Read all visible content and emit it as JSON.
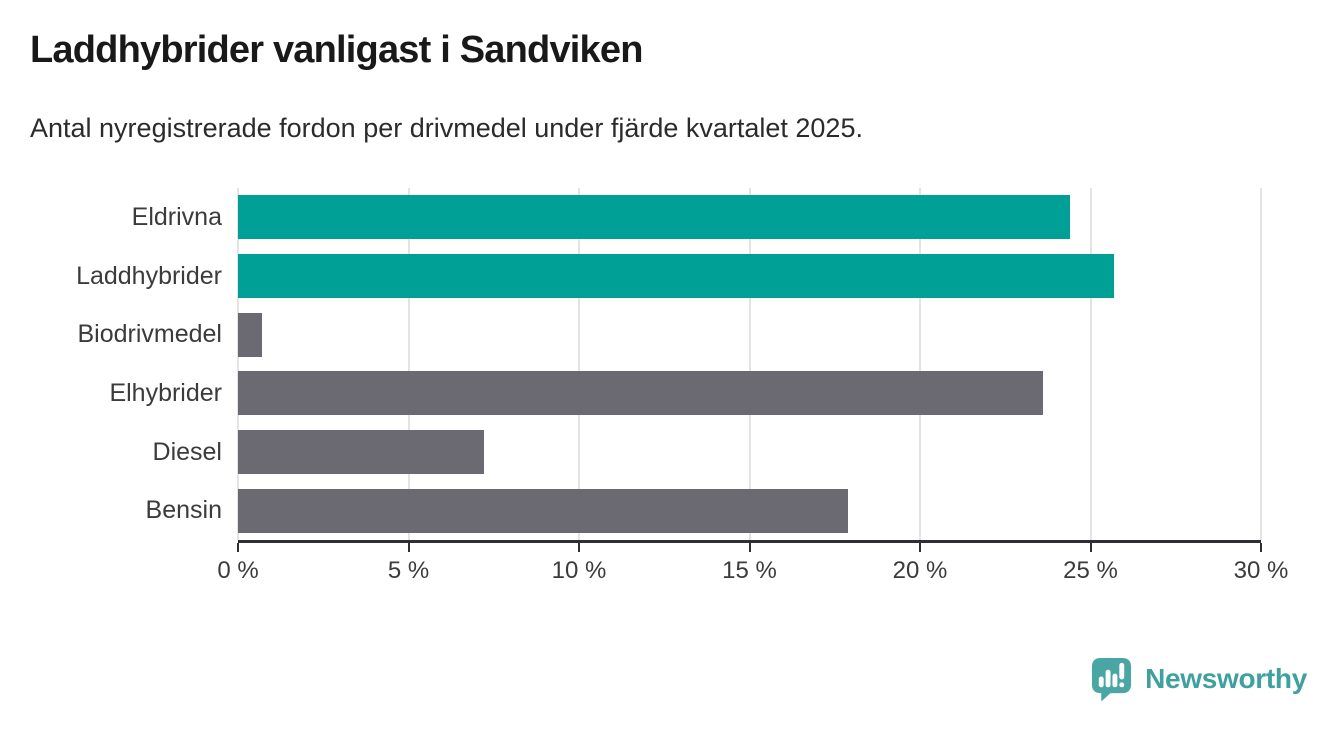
{
  "header": {
    "title": "Laddhybrider vanligast i Sandviken",
    "subtitle": "Antal nyregistrerade fordon per drivmedel under fjärde kvartalet 2025."
  },
  "chart_data": {
    "type": "bar",
    "orientation": "horizontal",
    "title": "Laddhybrider vanligast i Sandviken",
    "subtitle": "Antal nyregistrerade fordon per drivmedel under fjärde kvartalet 2025.",
    "categories": [
      "Eldrivna",
      "Laddhybrider",
      "Biodrivmedel",
      "Elhybrider",
      "Diesel",
      "Bensin"
    ],
    "values": [
      24.4,
      25.7,
      0.7,
      23.6,
      7.2,
      17.9
    ],
    "unit": "%",
    "xlim": [
      0,
      30
    ],
    "xticks": [
      0,
      5,
      10,
      15,
      20,
      25,
      30
    ],
    "xtick_labels": [
      "0 %",
      "5 %",
      "10 %",
      "15 %",
      "20 %",
      "25 %",
      "30 %"
    ],
    "bar_colors": [
      "#00A096",
      "#00A096",
      "#6B6A72",
      "#6B6A72",
      "#6B6A72",
      "#6B6A72"
    ],
    "highlight_color": "#00A096",
    "neutral_color": "#6B6A72",
    "gridline_color": "#E3E3E3",
    "axis_color": "#2F2F33",
    "grid": true,
    "legend": false
  },
  "footer": {
    "brand": "Newsworthy",
    "brand_color": "#3FA0A0",
    "logo_icon_color": "#4AA6A5",
    "logo_icon": "speech-bubble-bar-chart-icon"
  }
}
